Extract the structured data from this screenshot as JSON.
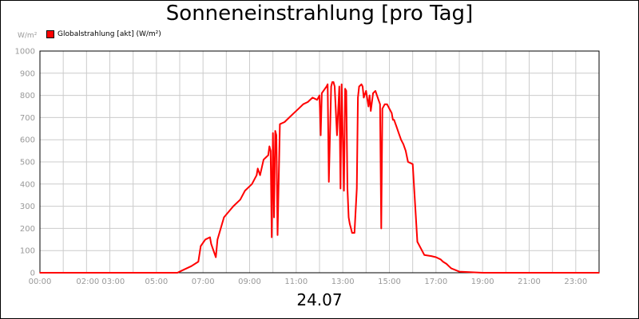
{
  "title": "Sonneneinstrahlung [pro Tag]",
  "footer_date": "24.07",
  "chart_data": {
    "type": "line",
    "title": "Sonneneinstrahlung [pro Tag]",
    "unit_label": "W/m²",
    "xlabel": "",
    "ylabel": "",
    "xlim": [
      0,
      24
    ],
    "ylim": [
      0,
      1000
    ],
    "y_ticks": [
      0,
      100,
      200,
      300,
      400,
      500,
      600,
      700,
      800,
      900,
      1000
    ],
    "x_ticks": [
      {
        "value": 0,
        "label": "00:00"
      },
      {
        "value": 2.6,
        "label": "02:00 03:00"
      },
      {
        "value": 5,
        "label": "05:00"
      },
      {
        "value": 7,
        "label": "07:00"
      },
      {
        "value": 9,
        "label": "09:00"
      },
      {
        "value": 11,
        "label": "11:00"
      },
      {
        "value": 13,
        "label": "13:00"
      },
      {
        "value": 15,
        "label": "15:00"
      },
      {
        "value": 17,
        "label": "17:00"
      },
      {
        "value": 19,
        "label": "19:00"
      },
      {
        "value": 21,
        "label": "21:00"
      },
      {
        "value": 23,
        "label": "23:00"
      }
    ],
    "grid": true,
    "legend_position": "top-left",
    "colors": {
      "series": "#ff0000",
      "grid": "#cccccc",
      "axis": "#000000",
      "tick_text": "#999999"
    },
    "series": [
      {
        "name": "Globalstrahlung [akt] (W/m²)",
        "x": [
          0,
          5.9,
          6.1,
          6.5,
          6.8,
          6.9,
          7.1,
          7.3,
          7.35,
          7.55,
          7.62,
          7.9,
          8.3,
          8.6,
          8.8,
          9.1,
          9.3,
          9.35,
          9.45,
          9.6,
          9.7,
          9.8,
          9.85,
          9.9,
          9.95,
          10.0,
          10.05,
          10.1,
          10.15,
          10.2,
          10.3,
          10.5,
          10.7,
          10.9,
          11.1,
          11.3,
          11.5,
          11.7,
          11.9,
          12.0,
          12.05,
          12.1,
          12.3,
          12.35,
          12.4,
          12.5,
          12.55,
          12.6,
          12.65,
          12.75,
          12.85,
          12.9,
          12.95,
          13.05,
          13.1,
          13.15,
          13.2,
          13.25,
          13.3,
          13.35,
          13.4,
          13.5,
          13.6,
          13.65,
          13.7,
          13.8,
          13.85,
          13.9,
          14.0,
          14.1,
          14.15,
          14.2,
          14.3,
          14.4,
          14.5,
          14.6,
          14.65,
          14.7,
          14.8,
          14.9,
          15.0,
          15.05,
          15.1,
          15.15,
          15.2,
          15.3,
          15.4,
          15.5,
          15.6,
          15.7,
          15.8,
          16.0,
          16.2,
          16.5,
          16.8,
          17.0,
          17.2,
          17.3,
          17.45,
          17.55,
          17.65,
          18.0,
          19.0,
          20.0,
          20.5,
          21.0,
          21.3,
          22.0,
          24.0
        ],
        "y": [
          0,
          0,
          10,
          30,
          50,
          120,
          150,
          160,
          130,
          70,
          150,
          250,
          300,
          330,
          370,
          400,
          440,
          470,
          440,
          510,
          520,
          530,
          570,
          550,
          160,
          630,
          250,
          640,
          620,
          170,
          670,
          680,
          700,
          720,
          740,
          760,
          770,
          790,
          780,
          800,
          620,
          810,
          840,
          850,
          410,
          840,
          860,
          860,
          840,
          620,
          840,
          380,
          850,
          370,
          830,
          820,
          380,
          250,
          220,
          200,
          180,
          180,
          380,
          790,
          840,
          850,
          840,
          790,
          820,
          750,
          800,
          730,
          810,
          820,
          790,
          760,
          200,
          740,
          760,
          760,
          740,
          730,
          720,
          690,
          690,
          660,
          630,
          600,
          580,
          550,
          500,
          490,
          140,
          80,
          75,
          70,
          60,
          50,
          40,
          30,
          20,
          5,
          0,
          0,
          0,
          0,
          0,
          0,
          0
        ]
      }
    ]
  }
}
